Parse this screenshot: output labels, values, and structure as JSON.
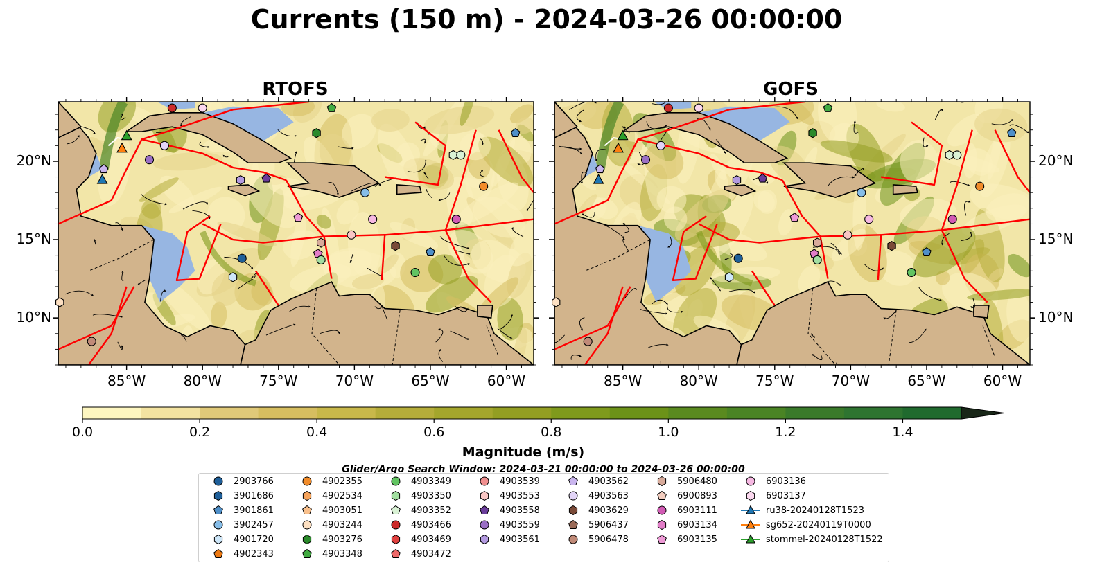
{
  "title": "Currents (150 m) - 2024-03-26 00:00:00",
  "maps": [
    {
      "title": "RTOFS"
    },
    {
      "title": "GOFS"
    }
  ],
  "axes": {
    "lon_labels": [
      "85°W",
      "80°W",
      "75°W",
      "70°W",
      "65°W",
      "60°W"
    ],
    "lon_values": [
      -85,
      -80,
      -75,
      -70,
      -65,
      -60
    ],
    "lat_labels": [
      "20°N",
      "15°N",
      "10°N"
    ],
    "lat_values": [
      20,
      15,
      10
    ],
    "lon_range": [
      -89.5,
      -58.2
    ],
    "lat_range": [
      7,
      23.8
    ]
  },
  "colorbar": {
    "title": "Magnitude (m/s)",
    "tick_labels": [
      "0.0",
      "0.2",
      "0.4",
      "0.6",
      "0.8",
      "1.0",
      "1.2",
      "1.4"
    ],
    "tick_values": [
      0,
      0.2,
      0.4,
      0.6,
      0.8,
      1.0,
      1.2,
      1.4
    ],
    "range": [
      0,
      1.5
    ],
    "step": 0.1,
    "extend": "max",
    "colors": [
      "#fdf6c0",
      "#f3e3a1",
      "#e0c979",
      "#d6be60",
      "#c8b84a",
      "#b5ad3a",
      "#a4a62c",
      "#939e22",
      "#7f9a1c",
      "#6c9218",
      "#5a8a1f",
      "#4a8424",
      "#3a7a2a",
      "#2e7430",
      "#206a2e",
      "#175e28",
      "#135022",
      "#13421c",
      "#153418",
      "#182617"
    ]
  },
  "search_window": "Glider/Argo Search Window: 2024-03-21 00:00:00 to 2024-03-26 00:00:00",
  "legend": {
    "columns": [
      [
        {
          "label": "2903766",
          "marker": "circle",
          "color": "#1f5f99"
        },
        {
          "label": "3901686",
          "marker": "hexagon",
          "color": "#1f5f99"
        },
        {
          "label": "3901861",
          "marker": "pentagon",
          "color": "#4f8fc8"
        },
        {
          "label": "3902457",
          "marker": "circle",
          "color": "#86bde8"
        },
        {
          "label": "4901720",
          "marker": "hexagon",
          "color": "#cde6f8"
        },
        {
          "label": "4902343",
          "marker": "pentagon",
          "color": "#ee7a12"
        }
      ],
      [
        {
          "label": "4902355",
          "marker": "circle",
          "color": "#f28c2a"
        },
        {
          "label": "4902534",
          "marker": "hexagon",
          "color": "#f7a45c"
        },
        {
          "label": "4903051",
          "marker": "pentagon",
          "color": "#f9c08c"
        },
        {
          "label": "4903244",
          "marker": "circle",
          "color": "#fde0c2"
        },
        {
          "label": "4903276",
          "marker": "hexagon",
          "color": "#2b8a2b"
        },
        {
          "label": "4903348",
          "marker": "pentagon",
          "color": "#41ab41"
        }
      ],
      [
        {
          "label": "4903349",
          "marker": "circle",
          "color": "#62c462"
        },
        {
          "label": "4903350",
          "marker": "hexagon",
          "color": "#a2dea0"
        },
        {
          "label": "4903352",
          "marker": "pentagon",
          "color": "#d9f2d5"
        },
        {
          "label": "4903466",
          "marker": "circle",
          "color": "#cc2a2a"
        },
        {
          "label": "4903469",
          "marker": "hexagon",
          "color": "#e0413f"
        },
        {
          "label": "4903472",
          "marker": "pentagon",
          "color": "#ee6a6a"
        }
      ],
      [
        {
          "label": "4903539",
          "marker": "circle",
          "color": "#f08f8f"
        },
        {
          "label": "4903553",
          "marker": "hexagon",
          "color": "#f9c6c4"
        },
        {
          "label": "4903558",
          "marker": "pentagon",
          "color": "#6a3d9a"
        },
        {
          "label": "4903559",
          "marker": "circle",
          "color": "#9a6fc4"
        },
        {
          "label": "4903561",
          "marker": "hexagon",
          "color": "#b39ae0"
        }
      ],
      [
        {
          "label": "4903562",
          "marker": "pentagon",
          "color": "#c9b5ee"
        },
        {
          "label": "4903563",
          "marker": "circle",
          "color": "#e2d4f7"
        },
        {
          "label": "4903629",
          "marker": "hexagon",
          "color": "#7a4a38"
        },
        {
          "label": "5906437",
          "marker": "pentagon",
          "color": "#9a6a58"
        },
        {
          "label": "5906478",
          "marker": "circle",
          "color": "#c08a78"
        }
      ],
      [
        {
          "label": "5906480",
          "marker": "hexagon",
          "color": "#d8ab9b"
        },
        {
          "label": "6900893",
          "marker": "pentagon",
          "color": "#f3cdbf"
        },
        {
          "label": "6903111",
          "marker": "circle",
          "color": "#d15ab4"
        },
        {
          "label": "6903134",
          "marker": "hexagon",
          "color": "#e27dc8"
        },
        {
          "label": "6903135",
          "marker": "pentagon",
          "color": "#ee9ad6"
        }
      ],
      [
        {
          "label": "6903136",
          "marker": "circle",
          "color": "#f6b8e2"
        },
        {
          "label": "6903137",
          "marker": "hexagon",
          "color": "#fbd8ef"
        },
        {
          "label": "ru38-20240128T1523",
          "marker": "line-triangle",
          "color": "#1f77b4"
        },
        {
          "label": "sg652-20240119T0000",
          "marker": "line-triangle",
          "color": "#ff7f0e"
        },
        {
          "label": "stommel-20240128T1522",
          "marker": "line-triangle",
          "color": "#2ca02c"
        }
      ]
    ]
  },
  "colors": {
    "land": "#d2b48c",
    "ocean_shallow": "#97b6e2",
    "eez_boundary": "#ff0000",
    "coastline": "#000000"
  }
}
